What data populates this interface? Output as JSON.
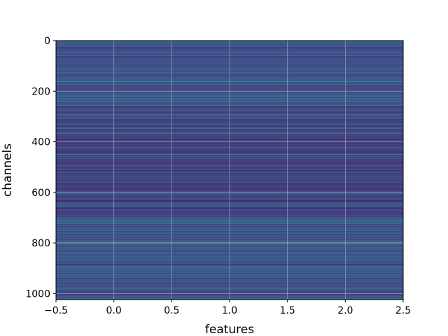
{
  "chart_data": {
    "type": "heatmap",
    "xlabel": "features",
    "ylabel": "channels",
    "xlim": [
      -0.5,
      2.5
    ],
    "ylim": [
      1024,
      0
    ],
    "y_inverted": true,
    "x_ticks": [
      -0.5,
      0.0,
      0.5,
      1.0,
      1.5,
      2.0,
      2.5
    ],
    "x_tick_labels": [
      "−0.5",
      "0.0",
      "0.5",
      "1.0",
      "1.5",
      "2.0",
      "2.5"
    ],
    "y_ticks": [
      0,
      200,
      400,
      600,
      800,
      1000
    ],
    "y_tick_labels": [
      "0",
      "200",
      "400",
      "600",
      "800",
      "1000"
    ],
    "grid": true,
    "colormap": "viridis",
    "n_channels": 1024,
    "n_features": 3,
    "value_pattern": "each channel row shows a near-constant value across the 3 features; mostly dark blue-purple with scattered teal rows and a few bright green rows",
    "bright_rows": [
      238,
      362,
      365,
      712,
      797
    ],
    "colors": {
      "grid": "#b0b0b0",
      "spine": "#000000",
      "background": "#ffffff"
    }
  }
}
